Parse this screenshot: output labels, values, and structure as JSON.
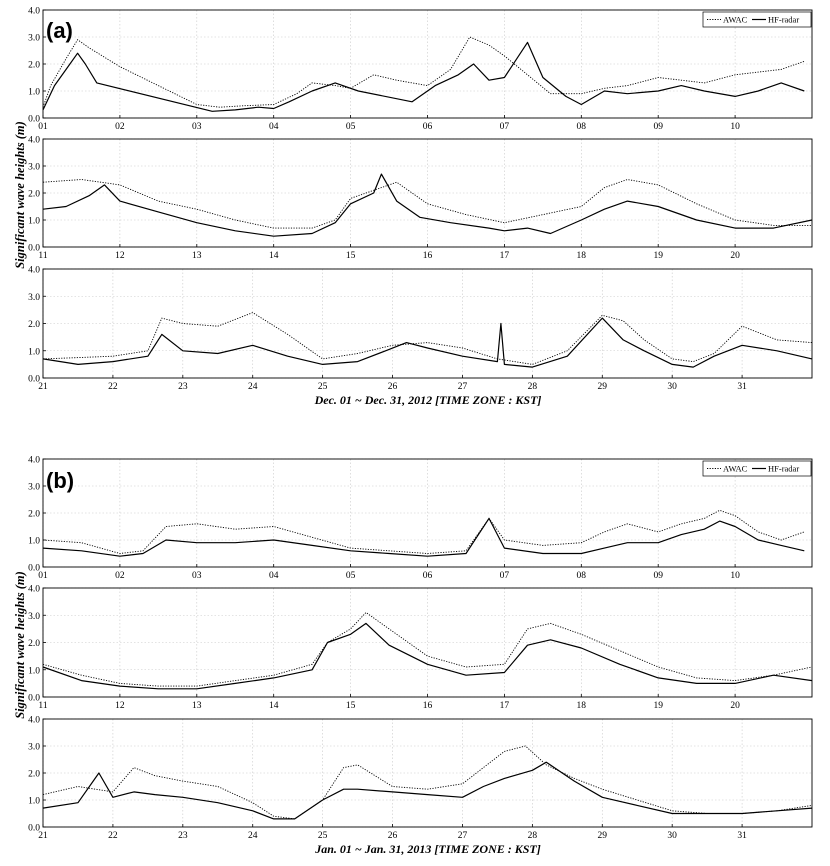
{
  "chart_data": [
    {
      "type": "line",
      "panel_label": "(a)",
      "caption": "Dec. 01 ~ Dec. 31,  2012 [TIME ZONE : KST]",
      "ylabel": "Significant wave heights (m)",
      "legend": [
        "AWAC",
        "HF-radar"
      ],
      "legend_position": "top-right",
      "ylim": [
        0,
        4
      ],
      "yticks": [
        "0.0",
        "1.0",
        "2.0",
        "3.0",
        "4.0"
      ],
      "grid": true,
      "rows": [
        {
          "xlim": [
            1,
            11
          ],
          "xticks": [
            "01",
            "02",
            "03",
            "04",
            "05",
            "06",
            "07",
            "08",
            "09",
            "10"
          ],
          "series": [
            {
              "name": "AWAC",
              "style": "dotted",
              "x": [
                1,
                1.1,
                1.3,
                1.45,
                1.6,
                2,
                2.5,
                3,
                3.3,
                3.6,
                4,
                4.3,
                4.5,
                4.8,
                5,
                5.3,
                5.6,
                6,
                6.3,
                6.55,
                6.8,
                7,
                7.3,
                7.6,
                8,
                8.3,
                8.6,
                9,
                9.3,
                9.6,
                10,
                10.3,
                10.6,
                10.9
              ],
              "y": [
                0.4,
                1.2,
                2.2,
                2.9,
                2.6,
                1.9,
                1.2,
                0.5,
                0.4,
                0.45,
                0.5,
                0.9,
                1.3,
                1.2,
                1.1,
                1.6,
                1.4,
                1.2,
                1.8,
                3.0,
                2.7,
                2.3,
                1.6,
                0.9,
                0.9,
                1.1,
                1.2,
                1.5,
                1.4,
                1.3,
                1.6,
                1.7,
                1.8,
                2.1
              ]
            },
            {
              "name": "HF-radar",
              "style": "solid",
              "x": [
                1,
                1.15,
                1.3,
                1.45,
                1.55,
                1.7,
                3.2,
                3.5,
                3.8,
                4,
                4.2,
                4.5,
                4.8,
                5.1,
                5.8,
                6.1,
                6.4,
                6.6,
                6.8,
                7,
                7.3,
                7.5,
                7.8,
                8,
                8.3,
                8.6,
                9,
                9.3,
                9.6,
                10,
                10.3,
                10.6,
                10.9
              ],
              "y": [
                0.3,
                1.2,
                1.8,
                2.4,
                2.0,
                1.3,
                0.25,
                0.3,
                0.4,
                0.35,
                0.6,
                1.0,
                1.3,
                1.0,
                0.6,
                1.2,
                1.6,
                2.0,
                1.4,
                1.5,
                2.8,
                1.5,
                0.8,
                0.5,
                1.0,
                0.9,
                1.0,
                1.2,
                1.0,
                0.8,
                1.0,
                1.3,
                1.0
              ]
            }
          ]
        },
        {
          "xlim": [
            11,
            21
          ],
          "xticks": [
            "11",
            "12",
            "13",
            "14",
            "15",
            "16",
            "17",
            "18",
            "19",
            "20"
          ],
          "series": [
            {
              "name": "AWAC",
              "style": "dotted",
              "x": [
                11,
                11.5,
                12,
                12.5,
                13,
                13.5,
                14,
                14.5,
                14.8,
                15,
                15.3,
                15.6,
                16,
                16.5,
                17,
                17.5,
                18,
                18.3,
                18.6,
                19,
                19.5,
                20,
                20.5,
                21
              ],
              "y": [
                2.4,
                2.5,
                2.3,
                1.7,
                1.4,
                1.0,
                0.7,
                0.7,
                1.0,
                1.8,
                2.1,
                2.4,
                1.6,
                1.2,
                0.9,
                1.2,
                1.5,
                2.2,
                2.5,
                2.3,
                1.6,
                1.0,
                0.8,
                0.8
              ]
            },
            {
              "name": "HF-radar",
              "style": "solid",
              "x": [
                11,
                11.3,
                11.6,
                11.8,
                12,
                12.5,
                13,
                13.5,
                14,
                14.5,
                14.8,
                15,
                15.3,
                15.4,
                15.6,
                15.9,
                16.3,
                16.8,
                17,
                17.3,
                17.6,
                18,
                18.3,
                18.6,
                19,
                19.5,
                20,
                20.5,
                21
              ],
              "y": [
                1.4,
                1.5,
                1.9,
                2.3,
                1.7,
                1.3,
                0.9,
                0.6,
                0.4,
                0.5,
                0.9,
                1.6,
                2.0,
                2.7,
                1.7,
                1.1,
                0.9,
                0.7,
                0.6,
                0.7,
                0.5,
                1.0,
                1.4,
                1.7,
                1.5,
                1.0,
                0.7,
                0.7,
                1.0
              ]
            }
          ]
        },
        {
          "xlim": [
            21,
            32
          ],
          "xticks": [
            "21",
            "22",
            "23",
            "24",
            "25",
            "26",
            "27",
            "28",
            "29",
            "30",
            "31"
          ],
          "series": [
            {
              "name": "AWAC",
              "style": "dotted",
              "x": [
                21,
                21.5,
                22,
                22.5,
                22.7,
                23,
                23.5,
                24,
                24.5,
                25,
                25.5,
                26,
                26.5,
                27,
                27.5,
                28,
                28.5,
                29,
                29.3,
                29.6,
                30,
                30.3,
                30.6,
                31,
                31.5,
                32
              ],
              "y": [
                0.7,
                0.75,
                0.8,
                1.0,
                2.2,
                2.0,
                1.9,
                2.4,
                1.6,
                0.7,
                0.9,
                1.2,
                1.3,
                1.1,
                0.7,
                0.5,
                1.0,
                2.3,
                2.1,
                1.4,
                0.7,
                0.6,
                0.9,
                1.9,
                1.4,
                1.3
              ]
            },
            {
              "name": "HF-radar",
              "style": "solid",
              "x": [
                21,
                21.5,
                22,
                22.5,
                22.7,
                23,
                23.5,
                24,
                24.5,
                25,
                25.5,
                25.9,
                26.2,
                26.5,
                27,
                27.5,
                27.55,
                27.6,
                28,
                28.5,
                29,
                29.3,
                29.6,
                30,
                30.3,
                30.6,
                31,
                31.5,
                32
              ],
              "y": [
                0.7,
                0.5,
                0.6,
                0.8,
                1.6,
                1.0,
                0.9,
                1.2,
                0.8,
                0.5,
                0.6,
                1.0,
                1.3,
                1.1,
                0.8,
                0.6,
                2.0,
                0.5,
                0.4,
                0.8,
                2.2,
                1.4,
                1.0,
                0.5,
                0.4,
                0.8,
                1.2,
                1.0,
                0.7
              ]
            }
          ]
        }
      ]
    },
    {
      "type": "line",
      "panel_label": "(b)",
      "caption": "Jan. 01 ~ Jan. 31,  2013 [TIME ZONE : KST]",
      "ylabel": "Significant wave heights (m)",
      "legend": [
        "AWAC",
        "HF-radar"
      ],
      "legend_position": "top-right",
      "ylim": [
        0,
        4
      ],
      "yticks": [
        "0.0",
        "1.0",
        "2.0",
        "3.0",
        "4.0"
      ],
      "grid": true,
      "rows": [
        {
          "xlim": [
            1,
            11
          ],
          "xticks": [
            "01",
            "02",
            "03",
            "04",
            "05",
            "06",
            "07",
            "08",
            "09",
            "10"
          ],
          "series": [
            {
              "name": "AWAC",
              "style": "dotted",
              "x": [
                1,
                1.5,
                2,
                2.3,
                2.6,
                3,
                3.5,
                4,
                4.5,
                5,
                5.5,
                6,
                6.5,
                6.8,
                7,
                7.5,
                8,
                8.3,
                8.6,
                9,
                9.3,
                9.6,
                9.8,
                10,
                10.3,
                10.6,
                10.9
              ],
              "y": [
                1.0,
                0.9,
                0.5,
                0.6,
                1.5,
                1.6,
                1.4,
                1.5,
                1.1,
                0.7,
                0.6,
                0.5,
                0.6,
                1.8,
                1.0,
                0.8,
                0.9,
                1.3,
                1.6,
                1.3,
                1.6,
                1.8,
                2.1,
                1.9,
                1.3,
                1.0,
                1.3
              ]
            },
            {
              "name": "HF-radar",
              "style": "solid",
              "x": [
                1,
                1.5,
                2,
                2.3,
                2.6,
                3,
                3.5,
                4,
                4.5,
                5,
                5.5,
                6,
                6.5,
                6.8,
                7,
                7.5,
                8,
                8.3,
                8.6,
                9,
                9.3,
                9.6,
                9.8,
                10,
                10.3,
                10.6,
                10.9
              ],
              "y": [
                0.7,
                0.6,
                0.4,
                0.5,
                1.0,
                0.9,
                0.9,
                1.0,
                0.8,
                0.6,
                0.5,
                0.4,
                0.5,
                1.8,
                0.7,
                0.5,
                0.5,
                0.7,
                0.9,
                0.9,
                1.2,
                1.4,
                1.7,
                1.5,
                1.0,
                0.8,
                0.6
              ]
            }
          ]
        },
        {
          "xlim": [
            11,
            21
          ],
          "xticks": [
            "11",
            "12",
            "13",
            "14",
            "15",
            "16",
            "17",
            "18",
            "19",
            "20"
          ],
          "series": [
            {
              "name": "AWAC",
              "style": "dotted",
              "x": [
                11,
                11.5,
                12,
                12.5,
                13,
                13.5,
                14,
                14.5,
                14.7,
                15,
                15.2,
                15.5,
                16,
                16.5,
                17,
                17.3,
                17.6,
                18,
                18.5,
                19,
                19.5,
                20,
                20.5,
                21
              ],
              "y": [
                1.2,
                0.8,
                0.5,
                0.4,
                0.4,
                0.6,
                0.8,
                1.2,
                2.0,
                2.5,
                3.1,
                2.5,
                1.5,
                1.1,
                1.2,
                2.5,
                2.7,
                2.3,
                1.7,
                1.1,
                0.7,
                0.6,
                0.8,
                1.1
              ]
            },
            {
              "name": "HF-radar",
              "style": "solid",
              "x": [
                11,
                11.5,
                12,
                12.5,
                13,
                13.5,
                14,
                14.5,
                14.7,
                15,
                15.2,
                15.5,
                16,
                16.5,
                17,
                17.3,
                17.6,
                18,
                18.5,
                19,
                19.5,
                20,
                20.5,
                21
              ],
              "y": [
                1.1,
                0.6,
                0.4,
                0.3,
                0.3,
                0.5,
                0.7,
                1.0,
                2.0,
                2.3,
                2.7,
                1.9,
                1.2,
                0.8,
                0.9,
                1.9,
                2.1,
                1.8,
                1.2,
                0.7,
                0.5,
                0.5,
                0.8,
                0.6
              ]
            }
          ]
        },
        {
          "xlim": [
            21,
            32
          ],
          "xticks": [
            "21",
            "22",
            "23",
            "24",
            "25",
            "26",
            "27",
            "28",
            "29",
            "30",
            "31"
          ],
          "series": [
            {
              "name": "AWAC",
              "style": "dotted",
              "x": [
                21,
                21.5,
                22,
                22.3,
                22.6,
                23,
                23.5,
                24,
                24.3,
                24.6,
                25,
                25.3,
                25.5,
                26,
                26.5,
                27,
                27.3,
                27.6,
                27.9,
                28.2,
                28.6,
                29,
                29.5,
                30,
                30.5,
                31,
                31.5,
                32
              ],
              "y": [
                1.2,
                1.5,
                1.3,
                2.2,
                1.9,
                1.7,
                1.5,
                0.9,
                0.4,
                0.3,
                1.0,
                2.2,
                2.3,
                1.5,
                1.4,
                1.6,
                2.2,
                2.8,
                3.0,
                2.3,
                1.8,
                1.4,
                1.0,
                0.6,
                0.5,
                0.5,
                0.6,
                0.8
              ]
            },
            {
              "name": "HF-radar",
              "style": "solid",
              "x": [
                21,
                21.5,
                21.8,
                22,
                22.3,
                22.6,
                23,
                23.5,
                24,
                24.3,
                24.6,
                25,
                25.3,
                25.5,
                26,
                26.5,
                27,
                27.3,
                27.6,
                28,
                28.2,
                28.6,
                29,
                29.5,
                30,
                30.5,
                31,
                31.5,
                32
              ],
              "y": [
                0.7,
                0.9,
                2.0,
                1.1,
                1.3,
                1.2,
                1.1,
                0.9,
                0.6,
                0.3,
                0.3,
                1.0,
                1.4,
                1.4,
                1.3,
                1.2,
                1.1,
                1.5,
                1.8,
                2.1,
                2.4,
                1.7,
                1.1,
                0.8,
                0.5,
                0.5,
                0.5,
                0.6,
                0.7
              ]
            }
          ]
        }
      ]
    }
  ]
}
